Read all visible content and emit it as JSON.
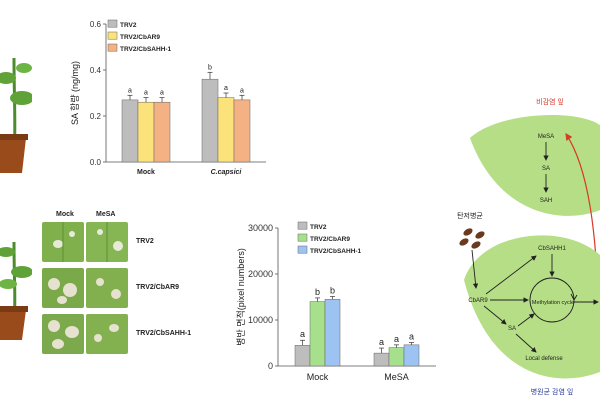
{
  "chart_data": [
    {
      "type": "bar",
      "ylabel": "SA 함량 (ng/mg)",
      "categories": [
        "Mock",
        "C.capsici"
      ],
      "ylim": [
        0,
        0.6
      ],
      "yticks": [
        "0.0",
        "0.2",
        "0.4",
        "0.6"
      ],
      "series": [
        {
          "name": "TRV2",
          "values": [
            0.27,
            0.36
          ],
          "errors": [
            0.02,
            0.03
          ],
          "letters": [
            "a",
            "b"
          ],
          "color": "#bdbdbd"
        },
        {
          "name": "TRV2/CbAR9",
          "values": [
            0.26,
            0.28
          ],
          "errors": [
            0.02,
            0.02
          ],
          "letters": [
            "a",
            "a"
          ],
          "color": "#fbe27a"
        },
        {
          "name": "TRV2/CbSAHH-1",
          "values": [
            0.26,
            0.27
          ],
          "errors": [
            0.02,
            0.02
          ],
          "letters": [
            "a",
            "a"
          ],
          "color": "#f4b184"
        }
      ]
    },
    {
      "type": "bar",
      "ylabel": "병반 면적(pixel numbers)",
      "categories": [
        "Mock",
        "MeSA"
      ],
      "ylim": [
        0,
        30000
      ],
      "yticks": [
        "0",
        "10000",
        "20000",
        "30000"
      ],
      "series": [
        {
          "name": "TRV2",
          "values": [
            4500,
            2800
          ],
          "errors": [
            1100,
            1100
          ],
          "letters": [
            "a",
            "a"
          ],
          "color": "#bdbdbd"
        },
        {
          "name": "TRV2/CbAR9",
          "values": [
            14000,
            4000
          ],
          "errors": [
            800,
            600
          ],
          "letters": [
            "b",
            "a"
          ],
          "color": "#a7e08d"
        },
        {
          "name": "TRV2/CbSAHH-1",
          "values": [
            14500,
            4600
          ],
          "errors": [
            600,
            500
          ],
          "letters": [
            "b",
            "a"
          ],
          "color": "#9cc3f2"
        }
      ]
    }
  ],
  "photo_panel": {
    "columns": [
      "Mock",
      "MeSA"
    ],
    "rows": [
      "TRV2",
      "TRV2/CbAR9",
      "TRV2/CbSAHH-1"
    ]
  },
  "diagram": {
    "top_leaf_title": "비감염 잎",
    "bottom_leaf_title": "병원균 감염 잎",
    "pathogen_label": "탄저병균",
    "top_nodes": [
      "MeSA",
      "SA",
      "SAH"
    ],
    "bottom_nodes": {
      "sahh": "CbSAHH1",
      "ar9": "CbAR9",
      "sa": "SA",
      "cycle": "Methylation cycle",
      "defense": "Local defense"
    },
    "colors": {
      "leaf": "#b5de86",
      "arrow_red": "#d63a2a",
      "title_red": "#d63a2a",
      "title_blue": "#2a3d9c"
    }
  }
}
